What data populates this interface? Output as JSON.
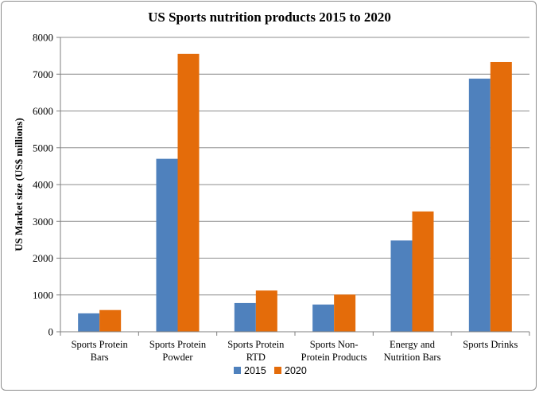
{
  "chart_data": {
    "type": "bar",
    "title": "US Sports nutrition products 2015 to 2020",
    "ylabel": "US Market size (US$ millions)",
    "xlabel": "",
    "ylim": [
      0,
      8000
    ],
    "yticks": [
      "0",
      "1000",
      "2000",
      "3000",
      "4000",
      "5000",
      "6000",
      "7000",
      "8000"
    ],
    "yticks_values": [
      0,
      1000,
      2000,
      3000,
      4000,
      5000,
      6000,
      7000,
      8000
    ],
    "grid": true,
    "legend_position": "bottom",
    "categories": [
      [
        "Sports Protein",
        "Bars"
      ],
      [
        "Sports Protein",
        "Powder"
      ],
      [
        "Sports Protein",
        "RTD"
      ],
      [
        "Sports Non-",
        "Protein Products"
      ],
      [
        "Energy and",
        "Nutrition Bars"
      ],
      [
        "Sports Drinks"
      ]
    ],
    "series": [
      {
        "name": "2015",
        "color": "#4f81bd",
        "values": [
          500,
          4700,
          780,
          740,
          2480,
          6880
        ]
      },
      {
        "name": "2020",
        "color": "#e46c0a",
        "values": [
          590,
          7550,
          1120,
          1010,
          3270,
          7330
        ]
      }
    ]
  }
}
